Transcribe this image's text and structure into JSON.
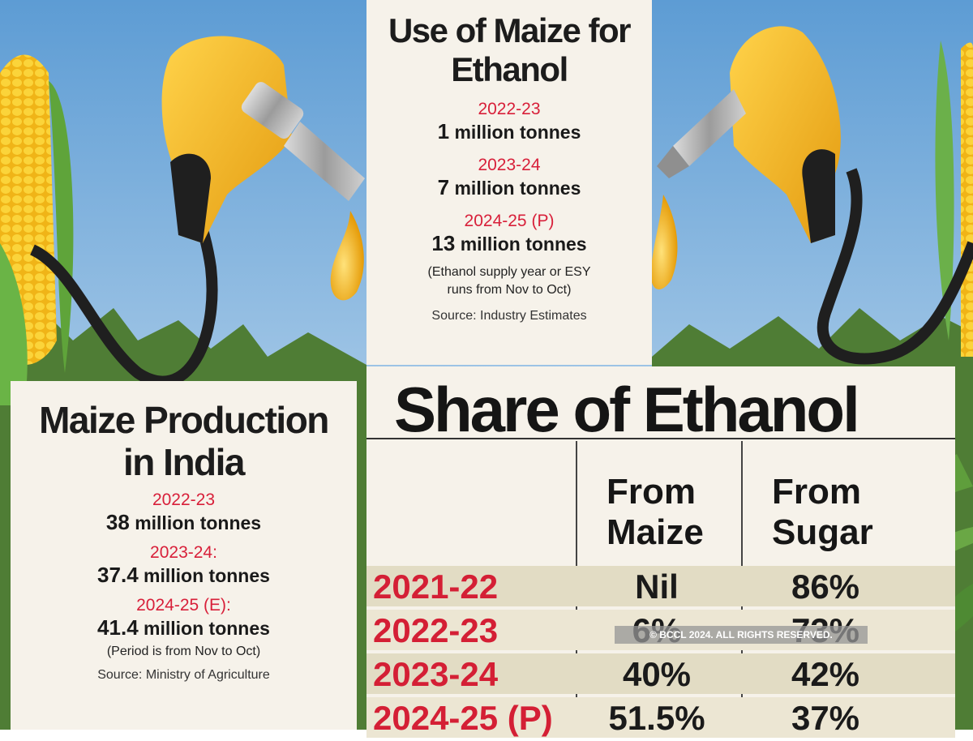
{
  "use_of_maize": {
    "title": "Use of Maize for Ethanol",
    "entries": [
      {
        "year": "2022-23",
        "amount": "1",
        "unit": "million tonnes"
      },
      {
        "year": "2023-24",
        "amount": "7",
        "unit": "million tonnes"
      },
      {
        "year": "2024-25 (P)",
        "amount": "13",
        "unit": "million tonnes"
      }
    ],
    "note": "(Ethanol supply year or ESY runs from Nov to Oct)",
    "source": "Source: Industry Estimates"
  },
  "maize_production": {
    "title_line1": "Maize Production",
    "title_line2": "in India",
    "entries": [
      {
        "year": "2022-23",
        "amount": "38",
        "unit": "million tonnes"
      },
      {
        "year": "2023-24:",
        "amount": "37.4",
        "unit": "million tonnes"
      },
      {
        "year": "2024-25 (E):",
        "amount": "41.4",
        "unit": "million tonnes"
      }
    ],
    "note": "(Period is from Nov to Oct)",
    "source": "Source: Ministry of Agriculture"
  },
  "share_of_ethanol": {
    "title": "Share of Ethanol",
    "col_maize_line1": "From",
    "col_maize_line2": "Maize",
    "col_sugar_line1": "From",
    "col_sugar_line2": "Sugar",
    "rows": [
      {
        "year": "2021-22",
        "maize": "Nil",
        "sugar": "86%"
      },
      {
        "year": "2022-23",
        "maize": "6%",
        "sugar": "73%"
      },
      {
        "year": "2023-24",
        "maize": "40%",
        "sugar": "42%"
      },
      {
        "year": "2024-25 (P)",
        "maize": "51.5%",
        "sugar": "37%"
      }
    ]
  },
  "watermark": "© BCCL 2024. ALL RIGHTS RESERVED.",
  "colors": {
    "sky": "#7fb3df",
    "pump": "#f2b71c",
    "corn": "#f4c21a",
    "year_red": "#d8203a",
    "panel": "#f6f2ea"
  },
  "icons": [
    "fuel-nozzle-icon",
    "corn-cob-icon",
    "oil-drop-icon"
  ]
}
